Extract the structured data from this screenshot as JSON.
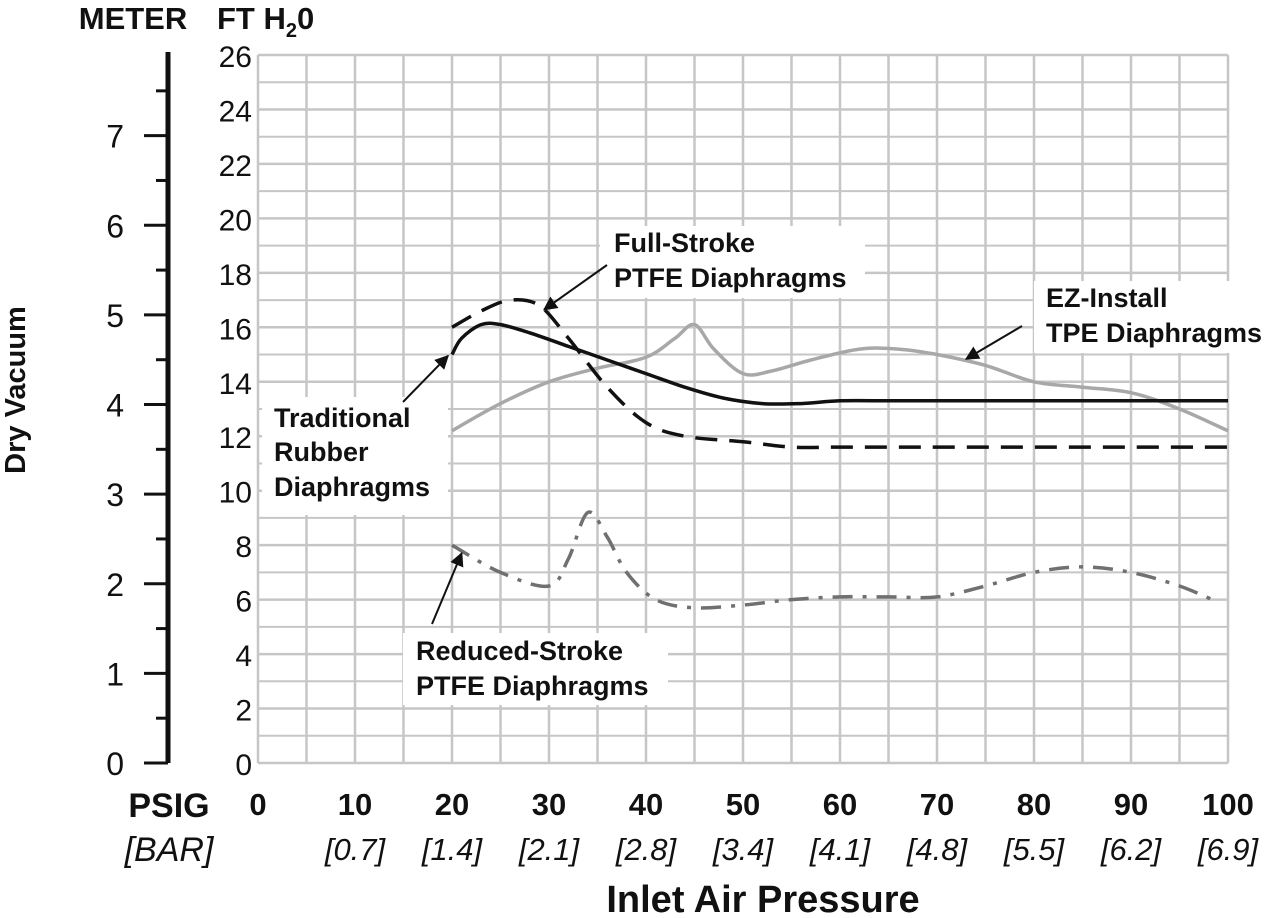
{
  "chart_data": {
    "type": "line",
    "title": "",
    "ylabel": "Dry Vacuum",
    "xlabel": "Inlet Air Pressure",
    "left_axis_unit": "METER",
    "right_axis_unit_prefix": "FT H",
    "right_axis_unit_sub": "2",
    "right_axis_unit_suffix": "0",
    "x_unit_label": "PSIG",
    "x_alt_unit_label": "[BAR]",
    "xlim": [
      0,
      100
    ],
    "ylim": [
      0,
      26
    ],
    "meter_lim": [
      0,
      7.9
    ],
    "x_ticks": [
      "0",
      "10",
      "20",
      "30",
      "40",
      "50",
      "60",
      "70",
      "80",
      "90",
      "100"
    ],
    "x_alt_ticks": [
      "",
      "[0.7]",
      "[1.4]",
      "[2.1]",
      "[2.8]",
      "[3.4]",
      "[4.1]",
      "[4.8]",
      "[5.5]",
      "[6.2]",
      "[6.9]"
    ],
    "y_ticks": [
      "0",
      "2",
      "4",
      "6",
      "8",
      "10",
      "12",
      "14",
      "16",
      "18",
      "20",
      "22",
      "24",
      "26"
    ],
    "meter_ticks": [
      "0",
      "1",
      "2",
      "3",
      "4",
      "5",
      "6",
      "7"
    ],
    "series": [
      {
        "name": "Traditional Rubber Diaphragms",
        "label_lines": [
          "Traditional",
          "Rubber",
          "Diaphragms"
        ],
        "style": "solid",
        "color": "#111111",
        "x": [
          20,
          21,
          23,
          25,
          28,
          32,
          36,
          40,
          44,
          48,
          52,
          56,
          60,
          65,
          70,
          80,
          90,
          100
        ],
        "y": [
          15.0,
          15.6,
          16.1,
          16.1,
          15.8,
          15.3,
          14.8,
          14.3,
          13.8,
          13.4,
          13.2,
          13.2,
          13.3,
          13.3,
          13.3,
          13.3,
          13.3,
          13.3
        ]
      },
      {
        "name": "Full-Stroke PTFE Diaphragms",
        "label_lines": [
          "Full-Stroke",
          "PTFE Diaphragms"
        ],
        "style": "dashed",
        "color": "#111111",
        "x": [
          20,
          23,
          26,
          29,
          32,
          36,
          40,
          44,
          50,
          55,
          60,
          65,
          70,
          80,
          90,
          100
        ],
        "y": [
          16.0,
          16.6,
          17.0,
          16.8,
          15.6,
          13.8,
          12.5,
          12.0,
          11.8,
          11.6,
          11.6,
          11.6,
          11.6,
          11.6,
          11.6,
          11.6
        ]
      },
      {
        "name": "EZ-Install TPE Diaphragms",
        "label_lines": [
          "EZ-Install",
          "TPE Diaphragms"
        ],
        "style": "solid",
        "color": "#a8a8a8",
        "x": [
          20,
          25,
          30,
          35,
          40,
          43,
          45,
          47,
          50,
          53,
          57,
          62,
          66,
          70,
          75,
          80,
          85,
          90,
          95,
          100
        ],
        "y": [
          12.2,
          13.2,
          14.0,
          14.5,
          14.9,
          15.6,
          16.1,
          15.2,
          14.3,
          14.4,
          14.8,
          15.2,
          15.2,
          15.0,
          14.6,
          14.0,
          13.8,
          13.6,
          13.0,
          12.2
        ]
      },
      {
        "name": "Reduced-Stroke PTFE Diaphragms",
        "label_lines": [
          "Reduced-Stroke",
          "PTFE Diaphragms"
        ],
        "style": "dashdot",
        "color": "#707070",
        "x": [
          20,
          25,
          30,
          32,
          34,
          36,
          38,
          41,
          45,
          50,
          55,
          60,
          65,
          70,
          75,
          80,
          85,
          90,
          95,
          99
        ],
        "y": [
          8.0,
          7.0,
          6.5,
          7.5,
          9.2,
          8.3,
          7.0,
          6.0,
          5.7,
          5.8,
          6.0,
          6.1,
          6.1,
          6.1,
          6.5,
          7.0,
          7.2,
          7.0,
          6.5,
          5.9
        ]
      }
    ]
  }
}
